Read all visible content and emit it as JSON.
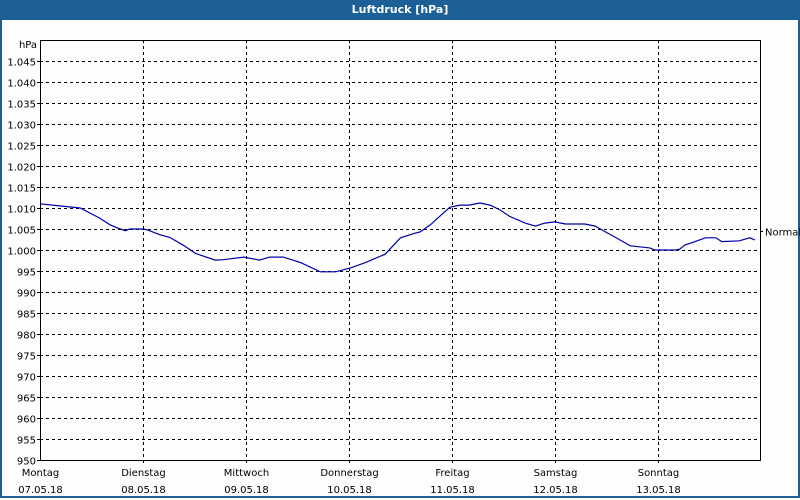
{
  "window": {
    "title": "Luftdruck [hPa]"
  },
  "chart_data": {
    "type": "line",
    "title": "Luftdruck [hPa]",
    "xlabel": "",
    "ylabel": "hPa",
    "ylim": [
      950,
      1050
    ],
    "yticks": [
      950,
      955,
      960,
      965,
      970,
      975,
      980,
      985,
      990,
      995,
      1000,
      1005,
      1010,
      1015,
      1020,
      1025,
      1030,
      1035,
      1040,
      1045
    ],
    "ytick_labels": [
      "950",
      "955",
      "960",
      "965",
      "970",
      "975",
      "980",
      "985",
      "990",
      "995",
      "1.000",
      "1.005",
      "1.010",
      "1.015",
      "1.020",
      "1.025",
      "1.030",
      "1.035",
      "1.040",
      "1.045"
    ],
    "x_categories": [
      {
        "day": "Montag",
        "date": "07.05.18"
      },
      {
        "day": "Dienstag",
        "date": "08.05.18"
      },
      {
        "day": "Mittwoch",
        "date": "09.05.18"
      },
      {
        "day": "Donnerstag",
        "date": "10.05.18"
      },
      {
        "day": "Freitag",
        "date": "11.05.18"
      },
      {
        "day": "Samstag",
        "date": "12.05.18"
      },
      {
        "day": "Sonntag",
        "date": "13.05.18"
      }
    ],
    "grid": true,
    "reference_line": {
      "label": "Normal",
      "value": 1004.5
    },
    "series": [
      {
        "name": "Luftdruck",
        "color": "#0000a8",
        "x_days": [
          0.0,
          0.19,
          0.39,
          0.58,
          0.68,
          0.78,
          0.83,
          0.87,
          1.0,
          1.04,
          1.17,
          1.26,
          1.4,
          1.51,
          1.7,
          1.78,
          1.98,
          2.13,
          2.23,
          2.36,
          2.53,
          2.72,
          2.87,
          3.01,
          3.16,
          3.35,
          3.5,
          3.64,
          3.69,
          3.79,
          3.88,
          3.98,
          4.08,
          4.17,
          4.27,
          4.37,
          4.47,
          4.56,
          4.71,
          4.81,
          4.9,
          5.0,
          5.1,
          5.29,
          5.39,
          5.44,
          5.63,
          5.73,
          5.92,
          5.97,
          6.17,
          6.21,
          6.26,
          6.36,
          6.46,
          6.56,
          6.62,
          6.79,
          6.89,
          6.94
        ],
        "values": [
          1011.0,
          1010.5,
          1010.0,
          1007.6,
          1006.0,
          1005.0,
          1004.6,
          1005.0,
          1005.0,
          1004.8,
          1003.6,
          1003.0,
          1001.0,
          999.2,
          997.6,
          997.7,
          998.3,
          997.6,
          998.3,
          998.3,
          997.0,
          994.8,
          994.8,
          995.7,
          997.0,
          999.0,
          1002.9,
          1004.0,
          1004.3,
          1006.0,
          1008.0,
          1010.2,
          1010.7,
          1010.7,
          1011.2,
          1010.7,
          1009.5,
          1008.0,
          1006.4,
          1005.7,
          1006.4,
          1006.7,
          1006.2,
          1006.2,
          1005.7,
          1005.0,
          1002.4,
          1001.0,
          1000.5,
          1000.0,
          1000.0,
          1000.2,
          1001.2,
          1002.0,
          1002.9,
          1002.9,
          1002.0,
          1002.2,
          1002.9,
          1002.4
        ]
      }
    ]
  }
}
